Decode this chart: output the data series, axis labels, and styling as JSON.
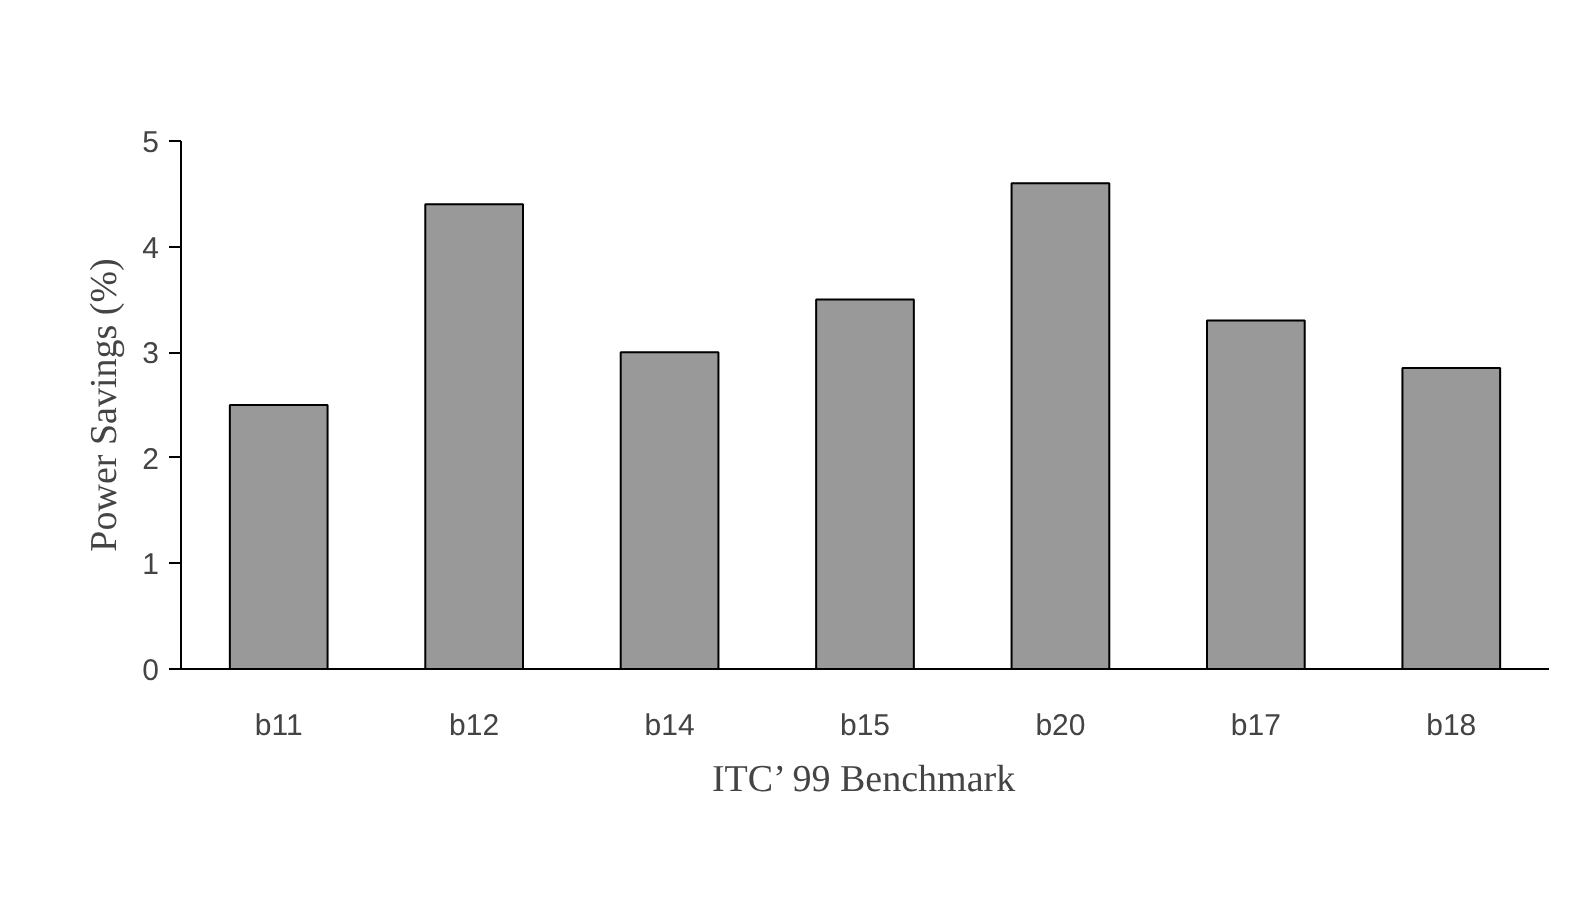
{
  "chart_data": {
    "type": "bar",
    "xlabel": "ITC’ 99 Benchmark",
    "ylabel": "Power Savings (%)",
    "categories": [
      "b11",
      "b12",
      "b14",
      "b15",
      "b20",
      "b17",
      "b18"
    ],
    "values": [
      2.5,
      4.4,
      3.0,
      3.5,
      4.6,
      3.3,
      2.85
    ],
    "color": "#999999",
    "ylim": [
      0,
      5
    ],
    "yticks": [
      0,
      1,
      2,
      3,
      4,
      5
    ],
    "grid": false
  }
}
